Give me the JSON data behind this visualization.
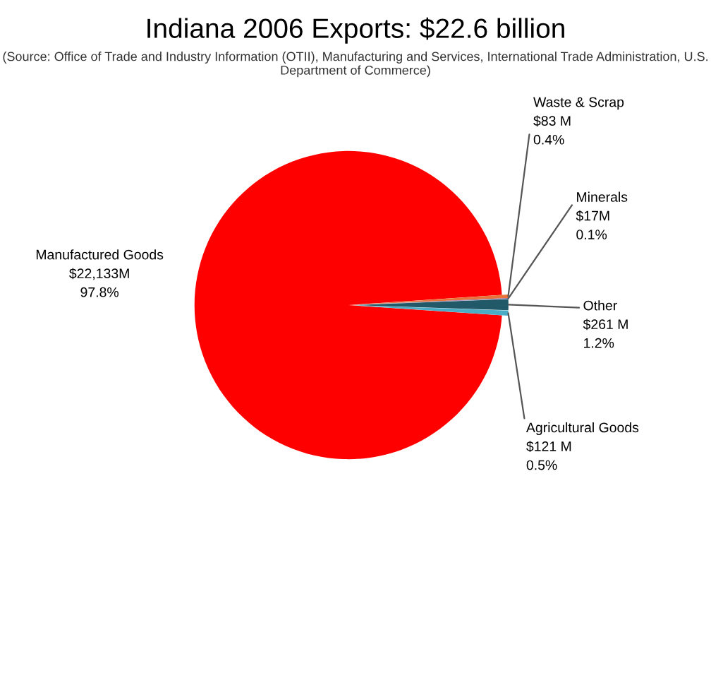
{
  "chart_data": {
    "type": "pie",
    "title": "Indiana 2006 Exports: $22.6 billion",
    "subtitle": "(Source: Office of Trade and Industry Information (OTII), Manufacturing and Services, International Trade Administration, U.S. Department of Commerce)",
    "categories": [
      "Manufactured Goods",
      "Waste & Scrap",
      "Minerals",
      "Other",
      "Agricultural Goods"
    ],
    "values": [
      22133,
      83,
      17,
      261,
      121
    ],
    "value_labels": [
      "$22,133M",
      "$83 M",
      "$17M",
      "$261 M",
      "$121 M"
    ],
    "annotations": [
      "97.8%",
      "0.4%",
      "0.1%",
      "1.2%",
      "0.5%"
    ],
    "colors": [
      "#ff0000",
      "#e8743b",
      "#8064a2",
      "#215968",
      "#4bacc6"
    ]
  }
}
